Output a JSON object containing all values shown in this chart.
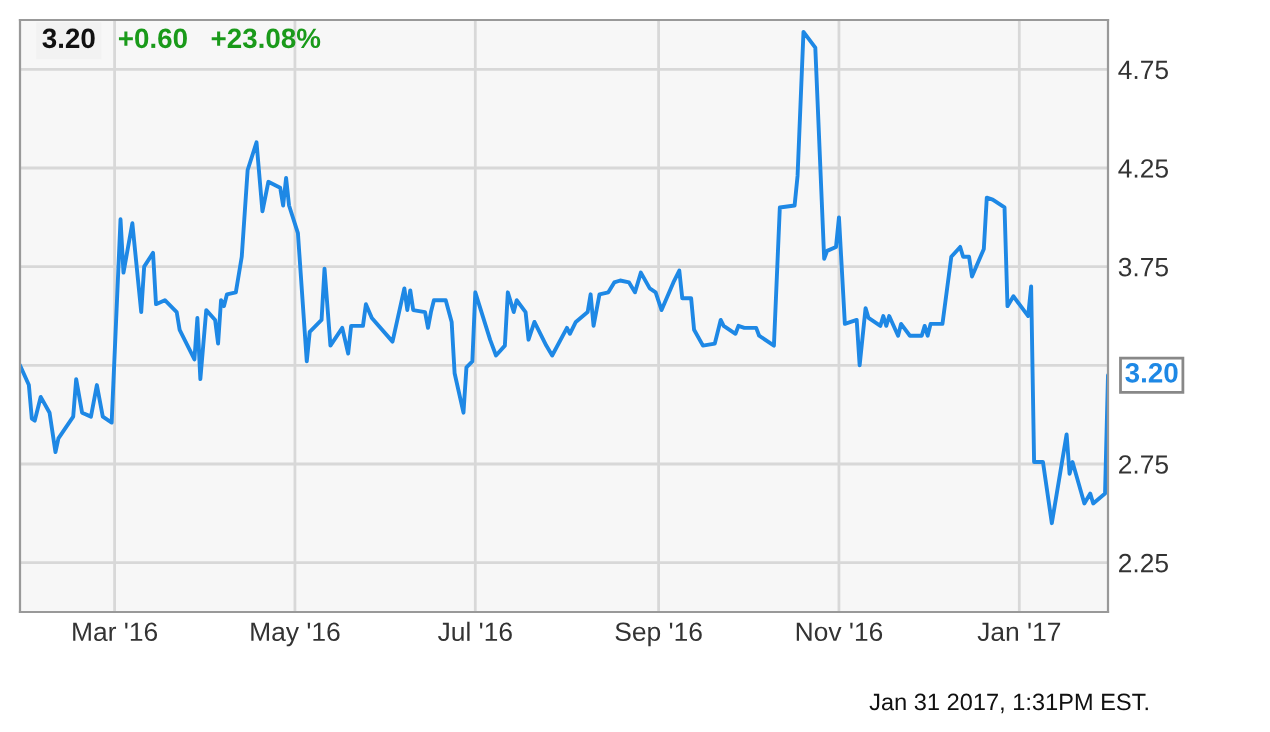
{
  "chart_data": {
    "type": "line",
    "annotations": [
      "3.20",
      "+0.60",
      "+23.08%",
      {
        "text": "3.20",
        "x": "2017-01-31",
        "y": 3.2
      },
      "Jan 31 2017, 1:31PM EST."
    ],
    "series": [
      {
        "color": "#1e88e5",
        "x": [
          "2016-01-29",
          "2016-02-01",
          "2016-02-02",
          "2016-02-03",
          "2016-02-05",
          "2016-02-08",
          "2016-02-10",
          "2016-02-11",
          "2016-02-16",
          "2016-02-17",
          "2016-02-19",
          "2016-02-22",
          "2016-02-24",
          "2016-02-26",
          "2016-02-29",
          "2016-03-03",
          "2016-03-04",
          "2016-03-07",
          "2016-03-10",
          "2016-03-11",
          "2016-03-14",
          "2016-03-15",
          "2016-03-18",
          "2016-03-22",
          "2016-03-23",
          "2016-03-28",
          "2016-03-29",
          "2016-03-30",
          "2016-04-01",
          "2016-04-04",
          "2016-04-05",
          "2016-04-06",
          "2016-04-07",
          "2016-04-08",
          "2016-04-11",
          "2016-04-13",
          "2016-04-15",
          "2016-04-18",
          "2016-04-20",
          "2016-04-22",
          "2016-04-26",
          "2016-04-27",
          "2016-04-28",
          "2016-04-29",
          "2016-05-02",
          "2016-05-05",
          "2016-05-06",
          "2016-05-10",
          "2016-05-11",
          "2016-05-13",
          "2016-05-17",
          "2016-05-19",
          "2016-05-20",
          "2016-05-24",
          "2016-05-25",
          "2016-05-27",
          "2016-06-03",
          "2016-06-07",
          "2016-06-08",
          "2016-06-09",
          "2016-06-10",
          "2016-06-14",
          "2016-06-15",
          "2016-06-16",
          "2016-06-17",
          "2016-06-21",
          "2016-06-23",
          "2016-06-24",
          "2016-06-27",
          "2016-06-28",
          "2016-06-30",
          "2016-07-01",
          "2016-07-06",
          "2016-07-08",
          "2016-07-11",
          "2016-07-12",
          "2016-07-14",
          "2016-07-15",
          "2016-07-18",
          "2016-07-19",
          "2016-07-21",
          "2016-07-25",
          "2016-07-27",
          "2016-08-01",
          "2016-08-02",
          "2016-08-04",
          "2016-08-08",
          "2016-08-09",
          "2016-08-10",
          "2016-08-12",
          "2016-08-15",
          "2016-08-17",
          "2016-08-19",
          "2016-08-22",
          "2016-08-24",
          "2016-08-26",
          "2016-08-29",
          "2016-08-31",
          "2016-09-02",
          "2016-09-06",
          "2016-09-08",
          "2016-09-09",
          "2016-09-12",
          "2016-09-13",
          "2016-09-16",
          "2016-09-20",
          "2016-09-22",
          "2016-09-23",
          "2016-09-27",
          "2016-09-28",
          "2016-09-30",
          "2016-10-04",
          "2016-10-05",
          "2016-10-10",
          "2016-10-12",
          "2016-10-17",
          "2016-10-18",
          "2016-10-20",
          "2016-10-24",
          "2016-10-27",
          "2016-10-28",
          "2016-10-31",
          "2016-11-01",
          "2016-11-03",
          "2016-11-07",
          "2016-11-08",
          "2016-11-10",
          "2016-11-11",
          "2016-11-15",
          "2016-11-16",
          "2016-11-17",
          "2016-11-18",
          "2016-11-21",
          "2016-11-22",
          "2016-11-25",
          "2016-11-29",
          "2016-11-30",
          "2016-12-01",
          "2016-12-02",
          "2016-12-06",
          "2016-12-09",
          "2016-12-12",
          "2016-12-13",
          "2016-12-15",
          "2016-12-16",
          "2016-12-20",
          "2016-12-21",
          "2016-12-23",
          "2016-12-27",
          "2016-12-28",
          "2016-12-30",
          "2017-01-03",
          "2017-01-04",
          "2017-01-05",
          "2017-01-06",
          "2017-01-09",
          "2017-01-12",
          "2017-01-17",
          "2017-01-18",
          "2017-01-19",
          "2017-01-23",
          "2017-01-25",
          "2017-01-26",
          "2017-01-30",
          "2017-01-31"
        ],
        "values": [
          3.25,
          3.15,
          2.98,
          2.97,
          3.09,
          3.01,
          2.81,
          2.88,
          2.99,
          3.18,
          3.01,
          2.99,
          3.15,
          2.99,
          2.96,
          3.99,
          3.72,
          3.97,
          3.52,
          3.75,
          3.82,
          3.56,
          3.58,
          3.52,
          3.43,
          3.28,
          3.49,
          3.18,
          3.53,
          3.48,
          3.36,
          3.58,
          3.55,
          3.61,
          3.62,
          3.8,
          4.24,
          4.38,
          4.03,
          4.18,
          4.15,
          4.06,
          4.2,
          4.06,
          3.92,
          3.27,
          3.42,
          3.48,
          3.74,
          3.35,
          3.44,
          3.31,
          3.45,
          3.45,
          3.56,
          3.49,
          3.37,
          3.64,
          3.53,
          3.63,
          3.53,
          3.52,
          3.44,
          3.52,
          3.58,
          3.58,
          3.47,
          3.21,
          3.01,
          3.24,
          3.27,
          3.62,
          3.38,
          3.3,
          3.35,
          3.62,
          3.52,
          3.58,
          3.52,
          3.38,
          3.47,
          3.35,
          3.3,
          3.44,
          3.41,
          3.47,
          3.52,
          3.61,
          3.45,
          3.61,
          3.62,
          3.67,
          3.68,
          3.67,
          3.62,
          3.72,
          3.64,
          3.62,
          3.53,
          3.67,
          3.73,
          3.59,
          3.59,
          3.43,
          3.35,
          3.36,
          3.48,
          3.45,
          3.41,
          3.45,
          3.44,
          3.44,
          3.4,
          3.35,
          4.05,
          4.06,
          4.21,
          4.94,
          4.86,
          3.79,
          3.83,
          3.85,
          4.0,
          3.46,
          3.48,
          3.25,
          3.54,
          3.49,
          3.45,
          3.5,
          3.45,
          3.5,
          3.4,
          3.46,
          3.4,
          3.4,
          3.45,
          3.4,
          3.46,
          3.46,
          3.8,
          3.85,
          3.8,
          3.8,
          3.7,
          3.84,
          4.1,
          4.09,
          4.05,
          3.55,
          3.6,
          3.52,
          3.5,
          3.65,
          2.76,
          2.76,
          2.45,
          2.9,
          2.7,
          2.76,
          2.55,
          2.6,
          2.55,
          2.6,
          3.2
        ]
      }
    ],
    "xlim": [
      "2016-01-29",
      "2017-01-31"
    ],
    "xticks": [
      {
        "value": "2016-03-01",
        "label": "Mar '16"
      },
      {
        "value": "2016-05-01",
        "label": "May '16"
      },
      {
        "value": "2016-07-01",
        "label": "Jul '16"
      },
      {
        "value": "2016-09-01",
        "label": "Sep '16"
      },
      {
        "value": "2016-11-01",
        "label": "Nov '16"
      },
      {
        "value": "2017-01-01",
        "label": "Jan '17"
      }
    ],
    "ylim": [
      2.0,
      5.0
    ],
    "yticks": [
      2.25,
      2.75,
      {
        "value": 3.25,
        "label": null
      },
      3.75,
      4.25,
      4.75
    ],
    "grid": true,
    "marker": "none",
    "line_style": "solid"
  }
}
